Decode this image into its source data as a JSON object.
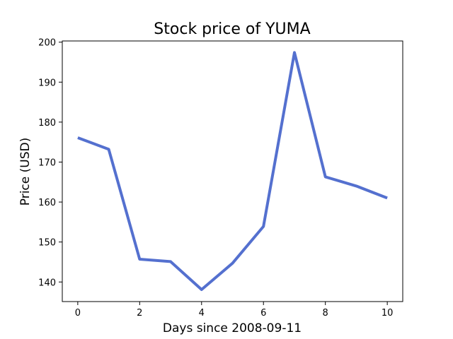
{
  "chart_data": {
    "type": "line",
    "title": "Stock price of YUMA",
    "xlabel": "Days since 2008-09-11",
    "ylabel": "Price (USD)",
    "x": [
      0,
      1,
      2,
      3,
      4,
      5,
      6,
      7,
      8,
      9,
      10
    ],
    "series": [
      {
        "values": [
          176.1,
          173.2,
          145.7,
          145.1,
          138.1,
          144.7,
          153.9,
          197.4,
          166.3,
          164.0,
          161.0
        ]
      }
    ],
    "xlim": [
      -0.5,
      10.5
    ],
    "ylim": [
      135.1,
      200.3
    ],
    "xticks": [
      0,
      2,
      4,
      6,
      8,
      10
    ],
    "yticks": [
      140,
      150,
      160,
      170,
      180,
      190,
      200
    ],
    "grid": false,
    "line_color": "#5470cf"
  }
}
